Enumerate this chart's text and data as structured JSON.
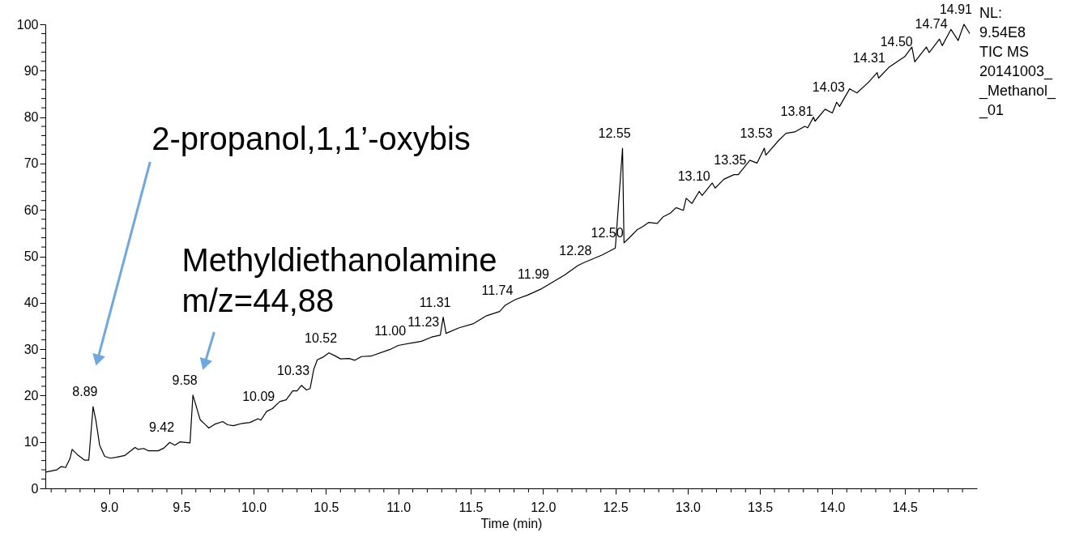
{
  "chart_data": {
    "type": "line",
    "xlabel": "Time (min)",
    "xlim": [
      8.56,
      15.0
    ],
    "ylim": [
      0,
      100
    ],
    "xticks": [
      {
        "value": 8.6,
        "label": null
      },
      {
        "value": 8.7,
        "label": null
      },
      {
        "value": 8.8,
        "label": null
      },
      {
        "value": 8.9,
        "label": null
      },
      {
        "value": 9.0,
        "label": "9.0"
      },
      {
        "value": 9.1,
        "label": null
      },
      {
        "value": 9.2,
        "label": null
      },
      {
        "value": 9.3,
        "label": null
      },
      {
        "value": 9.4,
        "label": null
      },
      {
        "value": 9.5,
        "label": "9.5"
      },
      {
        "value": 9.6,
        "label": null
      },
      {
        "value": 9.7,
        "label": null
      },
      {
        "value": 9.8,
        "label": null
      },
      {
        "value": 9.9,
        "label": null
      },
      {
        "value": 10.0,
        "label": "10.0"
      },
      {
        "value": 10.1,
        "label": null
      },
      {
        "value": 10.2,
        "label": null
      },
      {
        "value": 10.3,
        "label": null
      },
      {
        "value": 10.4,
        "label": null
      },
      {
        "value": 10.5,
        "label": "10.5"
      },
      {
        "value": 10.6,
        "label": null
      },
      {
        "value": 10.7,
        "label": null
      },
      {
        "value": 10.8,
        "label": null
      },
      {
        "value": 10.9,
        "label": null
      },
      {
        "value": 11.0,
        "label": "11.0"
      },
      {
        "value": 11.1,
        "label": null
      },
      {
        "value": 11.2,
        "label": null
      },
      {
        "value": 11.3,
        "label": null
      },
      {
        "value": 11.4,
        "label": null
      },
      {
        "value": 11.5,
        "label": "11.5"
      },
      {
        "value": 11.6,
        "label": null
      },
      {
        "value": 11.7,
        "label": null
      },
      {
        "value": 11.8,
        "label": null
      },
      {
        "value": 11.9,
        "label": null
      },
      {
        "value": 12.0,
        "label": "12.0"
      },
      {
        "value": 12.1,
        "label": null
      },
      {
        "value": 12.2,
        "label": null
      },
      {
        "value": 12.3,
        "label": null
      },
      {
        "value": 12.4,
        "label": null
      },
      {
        "value": 12.5,
        "label": "12.5"
      },
      {
        "value": 12.6,
        "label": null
      },
      {
        "value": 12.7,
        "label": null
      },
      {
        "value": 12.8,
        "label": null
      },
      {
        "value": 12.9,
        "label": null
      },
      {
        "value": 13.0,
        "label": "13.0"
      },
      {
        "value": 13.1,
        "label": null
      },
      {
        "value": 13.2,
        "label": null
      },
      {
        "value": 13.3,
        "label": null
      },
      {
        "value": 13.4,
        "label": null
      },
      {
        "value": 13.5,
        "label": "13.5"
      },
      {
        "value": 13.6,
        "label": null
      },
      {
        "value": 13.7,
        "label": null
      },
      {
        "value": 13.8,
        "label": null
      },
      {
        "value": 13.9,
        "label": null
      },
      {
        "value": 14.0,
        "label": "14.0"
      },
      {
        "value": 14.1,
        "label": null
      },
      {
        "value": 14.2,
        "label": null
      },
      {
        "value": 14.3,
        "label": null
      },
      {
        "value": 14.4,
        "label": null
      },
      {
        "value": 14.5,
        "label": "14.5"
      },
      {
        "value": 14.6,
        "label": null
      },
      {
        "value": 14.7,
        "label": null
      },
      {
        "value": 14.8,
        "label": null
      },
      {
        "value": 14.9,
        "label": null
      }
    ],
    "yticks": [
      0,
      {
        "value": 2,
        "label": null
      },
      {
        "value": 4,
        "label": null
      },
      {
        "value": 6,
        "label": null
      },
      {
        "value": 8,
        "label": null
      },
      10,
      {
        "value": 12,
        "label": null
      },
      {
        "value": 14,
        "label": null
      },
      {
        "value": 16,
        "label": null
      },
      {
        "value": 18,
        "label": null
      },
      20,
      {
        "value": 22,
        "label": null
      },
      {
        "value": 24,
        "label": null
      },
      {
        "value": 26,
        "label": null
      },
      {
        "value": 28,
        "label": null
      },
      30,
      {
        "value": 32,
        "label": null
      },
      {
        "value": 34,
        "label": null
      },
      {
        "value": 36,
        "label": null
      },
      {
        "value": 38,
        "label": null
      },
      40,
      {
        "value": 42,
        "label": null
      },
      {
        "value": 44,
        "label": null
      },
      {
        "value": 46,
        "label": null
      },
      {
        "value": 48,
        "label": null
      },
      50,
      {
        "value": 52,
        "label": null
      },
      {
        "value": 54,
        "label": null
      },
      {
        "value": 56,
        "label": null
      },
      {
        "value": 58,
        "label": null
      },
      60,
      {
        "value": 62,
        "label": null
      },
      {
        "value": 64,
        "label": null
      },
      {
        "value": 66,
        "label": null
      },
      {
        "value": 68,
        "label": null
      },
      70,
      {
        "value": 72,
        "label": null
      },
      {
        "value": 74,
        "label": null
      },
      {
        "value": 76,
        "label": null
      },
      {
        "value": 78,
        "label": null
      },
      80,
      {
        "value": 82,
        "label": null
      },
      {
        "value": 84,
        "label": null
      },
      {
        "value": 86,
        "label": null
      },
      {
        "value": 88,
        "label": null
      },
      90,
      {
        "value": 92,
        "label": null
      },
      {
        "value": 94,
        "label": null
      },
      {
        "value": 96,
        "label": null
      },
      {
        "value": 98,
        "label": null
      },
      100
    ],
    "grid": false,
    "marker": "none",
    "line_style": "solid",
    "series": [
      {
        "color": "#000000",
        "x": [
          8.564,
          8.64,
          8.67,
          8.7,
          8.73,
          8.745,
          8.78,
          8.83,
          8.86,
          8.89,
          8.91,
          8.935,
          8.97,
          9.01,
          9.05,
          9.11,
          9.18,
          9.2,
          9.24,
          9.27,
          9.34,
          9.38,
          9.42,
          9.455,
          9.49,
          9.56,
          9.58,
          9.63,
          9.69,
          9.73,
          9.785,
          9.82,
          9.86,
          9.92,
          9.975,
          10.03,
          10.05,
          10.09,
          10.13,
          10.18,
          10.225,
          10.27,
          10.3,
          10.33,
          10.365,
          10.39,
          10.415,
          10.44,
          10.475,
          10.52,
          10.56,
          10.6,
          10.66,
          10.7,
          10.745,
          10.81,
          10.94,
          11.0,
          11.16,
          11.23,
          11.29,
          11.31,
          11.33,
          11.42,
          11.52,
          11.61,
          11.7,
          11.74,
          11.81,
          11.89,
          11.99,
          12.07,
          12.15,
          12.24,
          12.28,
          12.41,
          12.5,
          12.55,
          12.56,
          12.6,
          12.65,
          12.69,
          12.73,
          12.79,
          12.83,
          12.88,
          12.92,
          12.97,
          12.99,
          13.03,
          13.08,
          13.1,
          13.17,
          13.19,
          13.25,
          13.32,
          13.35,
          13.43,
          13.48,
          13.53,
          13.54,
          13.63,
          13.68,
          13.74,
          13.81,
          13.83,
          13.87,
          13.88,
          13.95,
          14.0,
          14.03,
          14.05,
          14.12,
          14.17,
          14.25,
          14.31,
          14.32,
          14.39,
          14.46,
          14.5,
          14.55,
          14.57,
          14.65,
          14.67,
          14.74,
          14.76,
          14.82,
          14.87,
          14.91,
          14.95
        ],
        "values": [
          3.5,
          4.0,
          4.7,
          4.5,
          6.4,
          8.4,
          7.3,
          6.1,
          6.1,
          17.6,
          14.5,
          9.3,
          6.9,
          6.5,
          6.7,
          7.1,
          8.8,
          8.4,
          8.6,
          8.1,
          8.1,
          8.7,
          9.9,
          9.3,
          10.0,
          9.8,
          20.1,
          14.8,
          13.0,
          13.8,
          14.4,
          13.7,
          13.5,
          14.0,
          14.2,
          15.0,
          14.7,
          16.6,
          17.2,
          18.7,
          19.1,
          21.0,
          21.0,
          22.2,
          21.2,
          21.5,
          25.6,
          27.7,
          28.2,
          29.2,
          28.6,
          27.9,
          28.0,
          27.6,
          28.4,
          28.5,
          29.9,
          30.8,
          31.7,
          32.6,
          33.0,
          36.9,
          33.4,
          34.6,
          35.5,
          37.2,
          38.1,
          39.5,
          40.7,
          41.6,
          43.0,
          44.5,
          46.0,
          48.0,
          48.6,
          50.3,
          51.8,
          73.3,
          52.9,
          54.1,
          55.7,
          56.4,
          57.3,
          57.1,
          58.5,
          59.3,
          60.5,
          59.9,
          62.5,
          61.4,
          64.0,
          63.1,
          65.8,
          64.7,
          66.6,
          67.6,
          67.6,
          70.7,
          70.1,
          73.3,
          71.8,
          75.0,
          76.5,
          76.8,
          78.0,
          77.7,
          80.0,
          79.1,
          81.7,
          80.9,
          83.2,
          82.3,
          86.1,
          85.2,
          87.5,
          89.6,
          88.4,
          90.7,
          92.2,
          93.0,
          95.1,
          91.9,
          95.1,
          93.9,
          96.8,
          95.4,
          98.9,
          96.5,
          100.0,
          98.0
        ]
      }
    ],
    "annotations": [
      {
        "text": "2-propanol,1,1’-oxybis",
        "x": 8.92,
        "y": 27.6
      },
      {
        "text": "Methyldiethanolamine\nm/z=44,88",
        "x": 9.66,
        "y": 26.7
      },
      {
        "text": "8.89",
        "x": 8.89,
        "y": 17.6
      },
      {
        "text": "9.42",
        "x": 9.42,
        "y": 9.9
      },
      {
        "text": "9.58",
        "x": 9.58,
        "y": 20.1
      },
      {
        "text": "10.09",
        "x": 10.09,
        "y": 16.6
      },
      {
        "text": "10.33",
        "x": 10.33,
        "y": 22.2
      },
      {
        "text": "10.52",
        "x": 10.52,
        "y": 29.2
      },
      {
        "text": "11.00",
        "x": 11.0,
        "y": 30.8
      },
      {
        "text": "11.23",
        "x": 11.23,
        "y": 32.6
      },
      {
        "text": "11.31",
        "x": 11.31,
        "y": 36.9
      },
      {
        "text": "11.74",
        "x": 11.74,
        "y": 39.5
      },
      {
        "text": "11.99",
        "x": 11.99,
        "y": 43.0
      },
      {
        "text": "12.28",
        "x": 12.28,
        "y": 48.0
      },
      {
        "text": "12.50",
        "x": 12.5,
        "y": 51.8
      },
      {
        "text": "12.55",
        "x": 12.55,
        "y": 73.3
      },
      {
        "text": "13.10",
        "x": 13.1,
        "y": 64.0
      },
      {
        "text": "13.35",
        "x": 13.35,
        "y": 67.6
      },
      {
        "text": "13.53",
        "x": 13.53,
        "y": 73.3
      },
      {
        "text": "13.81",
        "x": 13.81,
        "y": 78.0
      },
      {
        "text": "14.03",
        "x": 14.03,
        "y": 83.2
      },
      {
        "text": "14.31",
        "x": 14.31,
        "y": 89.6
      },
      {
        "text": "14.50",
        "x": 14.5,
        "y": 93.0
      },
      {
        "text": "14.74",
        "x": 14.74,
        "y": 96.8
      },
      {
        "text": "14.91",
        "x": 14.91,
        "y": 100.0
      },
      "NL:\n9.54E8\nTIC  MS\n20141003_\n_Methanol_\n_01"
    ]
  }
}
